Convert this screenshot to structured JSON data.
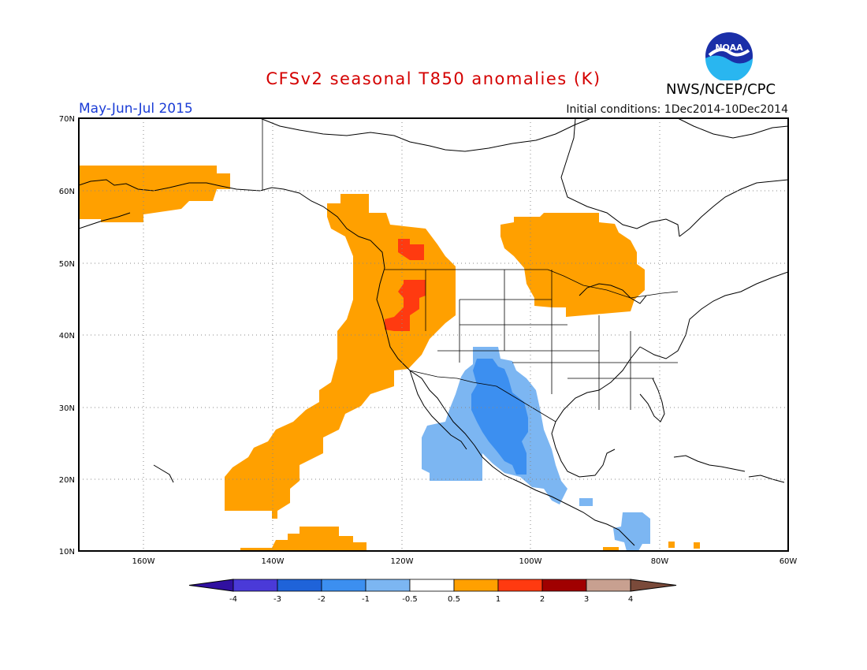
{
  "header": {
    "title": "CFSv2 seasonal T850 anomalies (K)",
    "period": "May-Jun-Jul 2015",
    "initial_conditions": "Initial conditions: 1Dec2014-10Dec2014",
    "agency": "NWS/NCEP/CPC",
    "logo_text": "NOAA"
  },
  "map": {
    "lat_labels": [
      "70N",
      "60N",
      "50N",
      "40N",
      "30N",
      "20N",
      "10N"
    ],
    "lon_labels": [
      "160W",
      "140W",
      "120W",
      "100W",
      "80W",
      "60W"
    ],
    "grid": "dotted"
  },
  "colorbar": {
    "tick_labels": [
      "-4",
      "-3",
      "-2",
      "-1",
      "-0.5",
      "0.5",
      "1",
      "2",
      "3",
      "4"
    ],
    "colors": [
      "#3010a0",
      "#4a3ad8",
      "#1f63d9",
      "#3c8ff0",
      "#7cb6f2",
      "#ffffff",
      "#ffa000",
      "#ff3a10",
      "#a00000",
      "#c8a090",
      "#7a4a3a"
    ]
  },
  "anomaly_colors": {
    "warm_1": "#ffa000",
    "warm_2": "#ff3a10",
    "cool_1": "#7cb6f2",
    "cool_2": "#3c8ff0"
  }
}
